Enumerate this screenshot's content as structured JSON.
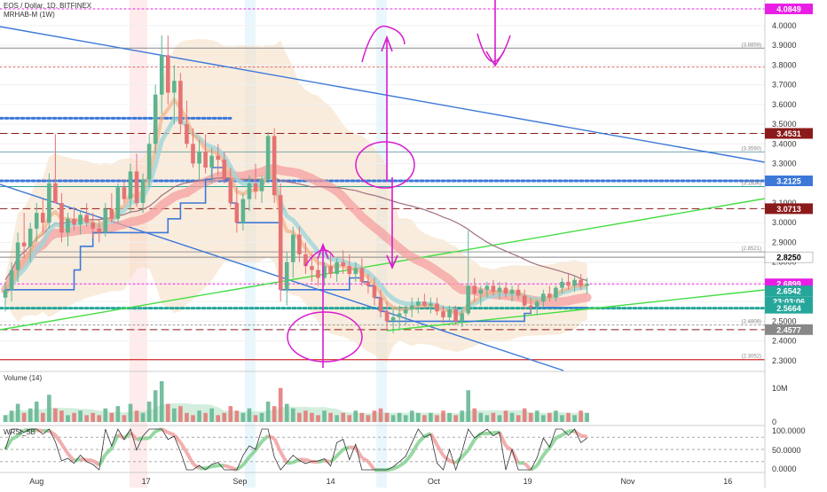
{
  "header": {
    "symbol_line": "EOS / Dollar, 1D, BITFINEX",
    "indicator_line": "MRHAB-M (1W)"
  },
  "chart_data": {
    "type": "candlestick",
    "y_axis": {
      "ticks": [
        "4.0000",
        "3.9000",
        "3.8000",
        "3.7000",
        "3.6000",
        "3.5000",
        "3.4000",
        "3.3000",
        "3.2000",
        "3.1000",
        "3.0000",
        "2.9000",
        "2.8000",
        "2.7000",
        "2.6000",
        "2.5000",
        "2.4000",
        "2.3000"
      ],
      "range": [
        2.25,
        4.13
      ]
    },
    "x_axis": {
      "ticks": [
        "Aug",
        "17",
        "Sep",
        "14",
        "Oct",
        "19",
        "Nov",
        "16"
      ]
    },
    "price_badges": [
      {
        "label": "4.0849",
        "value": 4.0849,
        "color": "#e91ee6"
      },
      {
        "label": "3.4531",
        "value": 3.4531,
        "color": "#8b1a1a"
      },
      {
        "label": "3.2125",
        "value": 3.2125,
        "color": "#3c78d8"
      },
      {
        "label": "3.0713",
        "value": 3.0713,
        "color": "#8b1a1a"
      },
      {
        "label": "2.8250",
        "value": 2.825,
        "color": "#ffffff",
        "text_color": "#000000"
      },
      {
        "label": "2.6899",
        "value": 2.6899,
        "color": "#e91ee6"
      },
      {
        "label": "2.6542",
        "value": 2.6542,
        "color": "#26a69a"
      },
      {
        "label": "23:03:06",
        "value": 2.6,
        "color": "#26a69a"
      },
      {
        "label": "2.5664",
        "value": 2.5664,
        "color": "#26a69a"
      },
      {
        "label": "2.4577",
        "value": 2.4577,
        "color": "#888888"
      }
    ],
    "level_labels": [
      {
        "label": "(3.8859)",
        "value": 3.8859
      },
      {
        "label": "(3.3590)",
        "value": 3.359
      },
      {
        "label": "(3.1834)",
        "value": 3.1834
      },
      {
        "label": "(2.8521)",
        "value": 2.8521
      },
      {
        "label": "(2.4808)",
        "value": 2.4808
      },
      {
        "label": "(2.3052)",
        "value": 2.3052
      }
    ],
    "horizontal_levels": [
      {
        "value": 4.0849,
        "color": "#e91ee6",
        "style": "dotted"
      },
      {
        "value": 3.8859,
        "color": "#888888",
        "style": "solid"
      },
      {
        "value": 3.79,
        "color": "#e06666",
        "style": "dotted"
      },
      {
        "value": 3.53,
        "color": "#3c78d8",
        "style": "dots"
      },
      {
        "value": 3.4531,
        "color": "#8b1a1a",
        "style": "dashed"
      },
      {
        "value": 3.359,
        "color": "#76a5af",
        "style": "solid"
      },
      {
        "value": 3.2125,
        "color": "#3c78d8",
        "style": "dots"
      },
      {
        "value": 3.1834,
        "color": "#26a69a",
        "style": "solid"
      },
      {
        "value": 3.0713,
        "color": "#8b1a1a",
        "style": "dashed"
      },
      {
        "value": 2.8521,
        "color": "#999999",
        "style": "solid"
      },
      {
        "value": 2.825,
        "color": "#888888",
        "style": "solid"
      },
      {
        "value": 2.6899,
        "color": "#e91ee6",
        "style": "dotted"
      },
      {
        "value": 2.5664,
        "color": "#26a69a",
        "style": "dots"
      },
      {
        "value": 2.4808,
        "color": "#999999",
        "style": "dotted"
      },
      {
        "value": 2.4577,
        "color": "#8b1a1a",
        "style": "dashed"
      },
      {
        "value": 2.3052,
        "color": "#cc0000",
        "style": "solid"
      }
    ],
    "candles": [
      [
        2.62,
        2.7,
        2.55,
        2.66
      ],
      [
        2.66,
        2.8,
        2.6,
        2.76
      ],
      [
        2.76,
        2.95,
        2.7,
        2.9
      ],
      [
        2.9,
        3.05,
        2.82,
        2.88
      ],
      [
        2.88,
        3.0,
        2.8,
        2.97
      ],
      [
        2.97,
        3.1,
        2.9,
        3.05
      ],
      [
        3.05,
        3.12,
        2.95,
        3.0
      ],
      [
        3.0,
        3.25,
        2.97,
        3.2
      ],
      [
        3.2,
        3.45,
        3.1,
        3.1
      ],
      [
        3.1,
        3.15,
        2.9,
        2.95
      ],
      [
        2.95,
        3.05,
        2.88,
        3.02
      ],
      [
        3.02,
        3.08,
        2.96,
        2.99
      ],
      [
        2.99,
        3.06,
        2.94,
        3.04
      ],
      [
        3.04,
        3.1,
        2.98,
        3.0
      ],
      [
        3.0,
        3.05,
        2.92,
        2.97
      ],
      [
        2.97,
        3.02,
        2.9,
        2.95
      ],
      [
        2.95,
        3.1,
        2.93,
        3.07
      ],
      [
        3.07,
        3.15,
        3.0,
        3.02
      ],
      [
        3.02,
        3.2,
        3.0,
        3.18
      ],
      [
        3.18,
        3.22,
        3.1,
        3.12
      ],
      [
        3.12,
        3.3,
        3.05,
        3.26
      ],
      [
        3.26,
        3.35,
        3.08,
        3.1
      ],
      [
        3.1,
        3.25,
        3.05,
        3.22
      ],
      [
        3.22,
        3.45,
        3.18,
        3.4
      ],
      [
        3.4,
        3.7,
        3.35,
        3.65
      ],
      [
        3.65,
        3.95,
        3.55,
        3.85
      ],
      [
        3.85,
        3.95,
        3.6,
        3.66
      ],
      [
        3.66,
        3.8,
        3.5,
        3.72
      ],
      [
        3.72,
        3.76,
        3.45,
        3.5
      ],
      [
        3.5,
        3.62,
        3.38,
        3.4
      ],
      [
        3.4,
        3.48,
        3.28,
        3.3
      ],
      [
        3.3,
        3.42,
        3.22,
        3.36
      ],
      [
        3.36,
        3.45,
        3.25,
        3.28
      ],
      [
        3.28,
        3.38,
        3.2,
        3.34
      ],
      [
        3.34,
        3.4,
        3.24,
        3.32
      ],
      [
        3.32,
        3.36,
        3.2,
        3.22
      ],
      [
        3.22,
        3.28,
        3.08,
        3.1
      ],
      [
        3.1,
        3.18,
        2.95,
        3.0
      ],
      [
        3.0,
        3.15,
        2.96,
        3.12
      ],
      [
        3.12,
        3.24,
        3.06,
        3.2
      ],
      [
        3.2,
        3.3,
        3.12,
        3.16
      ],
      [
        3.16,
        3.24,
        3.1,
        3.22
      ],
      [
        3.22,
        3.46,
        3.2,
        3.44
      ],
      [
        3.44,
        3.48,
        3.1,
        3.14
      ],
      [
        3.14,
        3.2,
        2.6,
        2.66
      ],
      [
        2.66,
        2.85,
        2.58,
        2.8
      ],
      [
        2.8,
        2.98,
        2.72,
        2.94
      ],
      [
        2.94,
        2.98,
        2.8,
        2.84
      ],
      [
        2.84,
        2.9,
        2.74,
        2.78
      ],
      [
        2.78,
        2.84,
        2.7,
        2.76
      ],
      [
        2.76,
        2.82,
        2.68,
        2.72
      ],
      [
        2.72,
        2.8,
        2.68,
        2.78
      ],
      [
        2.78,
        2.84,
        2.72,
        2.74
      ],
      [
        2.74,
        2.82,
        2.7,
        2.8
      ],
      [
        2.8,
        2.86,
        2.74,
        2.78
      ],
      [
        2.78,
        2.84,
        2.72,
        2.74
      ],
      [
        2.74,
        2.8,
        2.7,
        2.77
      ],
      [
        2.77,
        2.82,
        2.68,
        2.7
      ],
      [
        2.7,
        2.74,
        2.64,
        2.68
      ],
      [
        2.68,
        2.72,
        2.58,
        2.62
      ],
      [
        2.62,
        2.66,
        2.52,
        2.55
      ],
      [
        2.55,
        2.6,
        2.46,
        2.5
      ],
      [
        2.5,
        2.56,
        2.44,
        2.52
      ],
      [
        2.52,
        2.58,
        2.46,
        2.54
      ],
      [
        2.54,
        2.58,
        2.48,
        2.56
      ],
      [
        2.56,
        2.62,
        2.52,
        2.58
      ],
      [
        2.58,
        2.62,
        2.54,
        2.6
      ],
      [
        2.6,
        2.64,
        2.56,
        2.58
      ],
      [
        2.58,
        2.62,
        2.54,
        2.59
      ],
      [
        2.59,
        2.62,
        2.53,
        2.55
      ],
      [
        2.55,
        2.58,
        2.49,
        2.52
      ],
      [
        2.52,
        2.58,
        2.5,
        2.56
      ],
      [
        2.56,
        2.58,
        2.48,
        2.5
      ],
      [
        2.5,
        2.56,
        2.47,
        2.54
      ],
      [
        2.54,
        2.96,
        2.53,
        2.68
      ],
      [
        2.68,
        2.72,
        2.6,
        2.64
      ],
      [
        2.64,
        2.68,
        2.58,
        2.66
      ],
      [
        2.66,
        2.7,
        2.62,
        2.68
      ],
      [
        2.68,
        2.71,
        2.63,
        2.65
      ],
      [
        2.65,
        2.7,
        2.61,
        2.67
      ],
      [
        2.67,
        2.7,
        2.62,
        2.64
      ],
      [
        2.64,
        2.68,
        2.6,
        2.66
      ],
      [
        2.66,
        2.69,
        2.61,
        2.63
      ],
      [
        2.63,
        2.66,
        2.56,
        2.58
      ],
      [
        2.58,
        2.62,
        2.54,
        2.57
      ],
      [
        2.57,
        2.61,
        2.53,
        2.6
      ],
      [
        2.6,
        2.66,
        2.57,
        2.64
      ],
      [
        2.64,
        2.68,
        2.6,
        2.62
      ],
      [
        2.62,
        2.68,
        2.6,
        2.67
      ],
      [
        2.67,
        2.72,
        2.64,
        2.7
      ],
      [
        2.7,
        2.74,
        2.66,
        2.68
      ],
      [
        2.68,
        2.73,
        2.65,
        2.71
      ],
      [
        2.71,
        2.74,
        2.66,
        2.68
      ],
      [
        2.68,
        2.72,
        2.64,
        2.69
      ]
    ],
    "volume_panel": {
      "title": "Volume (14)",
      "ticks": [
        "10M",
        "0"
      ],
      "values": [
        3,
        5,
        8,
        4,
        6,
        9,
        4,
        12,
        6,
        5,
        3,
        4,
        5,
        3,
        4,
        3,
        6,
        4,
        7,
        3,
        8,
        5,
        4,
        9,
        14,
        18,
        8,
        6,
        7,
        4,
        3,
        5,
        4,
        6,
        3,
        4,
        7,
        5,
        4,
        6,
        3,
        4,
        9,
        7,
        15,
        8,
        6,
        4,
        5,
        4,
        3,
        5,
        4,
        3,
        4,
        3,
        5,
        4,
        3,
        5,
        6,
        4,
        3,
        4,
        3,
        5,
        4,
        3,
        4,
        3,
        5,
        4,
        3,
        5,
        14,
        6,
        4,
        3,
        4,
        3,
        5,
        4,
        3,
        6,
        4,
        5,
        3,
        4,
        5,
        3,
        4,
        3,
        5,
        4
      ]
    },
    "oscillator_panel": {
      "title": "WRSI_SB",
      "ticks": [
        "100.0000",
        "50.0000",
        "0.0000"
      ]
    },
    "annotations": []
  }
}
